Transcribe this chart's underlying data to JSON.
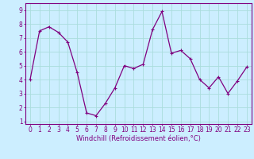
{
  "x": [
    0,
    1,
    2,
    3,
    4,
    5,
    6,
    7,
    8,
    9,
    10,
    11,
    12,
    13,
    14,
    15,
    16,
    17,
    18,
    19,
    20,
    21,
    22,
    23
  ],
  "y": [
    4.0,
    7.5,
    7.8,
    7.4,
    6.7,
    4.5,
    1.6,
    1.4,
    2.3,
    3.4,
    5.0,
    4.8,
    5.1,
    7.6,
    8.9,
    5.9,
    6.1,
    5.5,
    4.0,
    3.4,
    4.2,
    3.0,
    3.9,
    4.9
  ],
  "line_color": "#800080",
  "marker": "+",
  "marker_size": 3,
  "marker_lw": 0.8,
  "bg_color": "#cceeff",
  "grid_color": "#aadddd",
  "xlabel": "Windchill (Refroidissement éolien,°C)",
  "xlim": [
    -0.5,
    23.5
  ],
  "ylim": [
    0.8,
    9.5
  ],
  "xticks": [
    0,
    1,
    2,
    3,
    4,
    5,
    6,
    7,
    8,
    9,
    10,
    11,
    12,
    13,
    14,
    15,
    16,
    17,
    18,
    19,
    20,
    21,
    22,
    23
  ],
  "yticks": [
    1,
    2,
    3,
    4,
    5,
    6,
    7,
    8,
    9
  ],
  "tick_fontsize": 5.5,
  "label_fontsize": 6.0,
  "axis_color": "#800080",
  "linewidth": 0.9
}
